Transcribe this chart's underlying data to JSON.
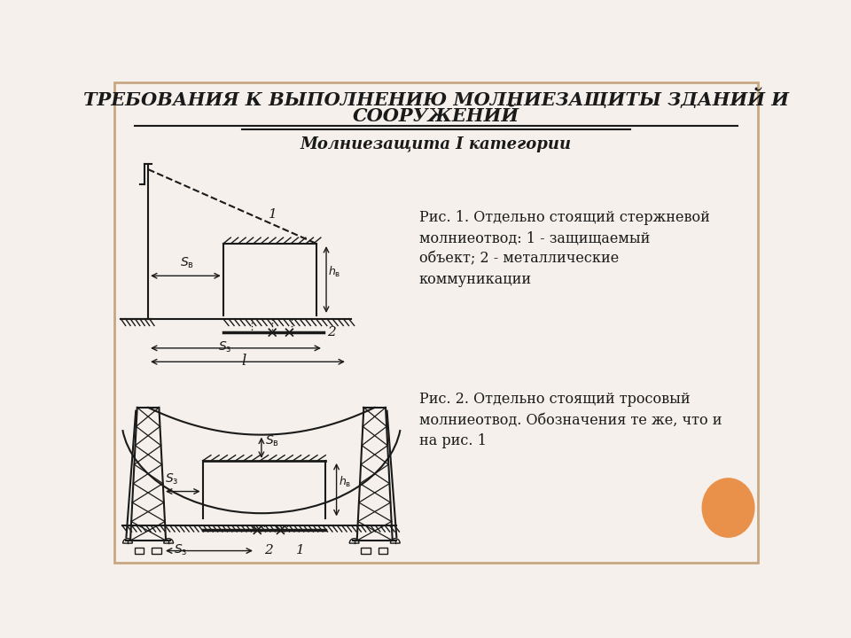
{
  "title_line1": "ТРЕБОВАНИЯ К ВЫПОЛНЕНИЮ МОЛНИЕЗАЩИТЫ ЗДАНИЙ И",
  "title_line2": "СООРУЖЕНИЙ",
  "subtitle": "Молниезащита I категории",
  "fig1_caption": "Рис. 1. Отдельно стоящий стержневой\nмолниеотвод: 1 - защищаемый\nобъект; 2 - металлические\nкоммуникации",
  "fig2_caption": "Рис. 2. Отдельно стоящий тросовый\nмолниеотвод. Обозначения те же, что и\nна рис. 1",
  "bg_color": "#f5f0eb",
  "draw_color": "#1a1a1a",
  "border_color": "#c8a882",
  "orange_circle_color": "#e8873a",
  "title_fontsize": 15,
  "subtitle_fontsize": 13,
  "caption_fontsize": 11.5
}
